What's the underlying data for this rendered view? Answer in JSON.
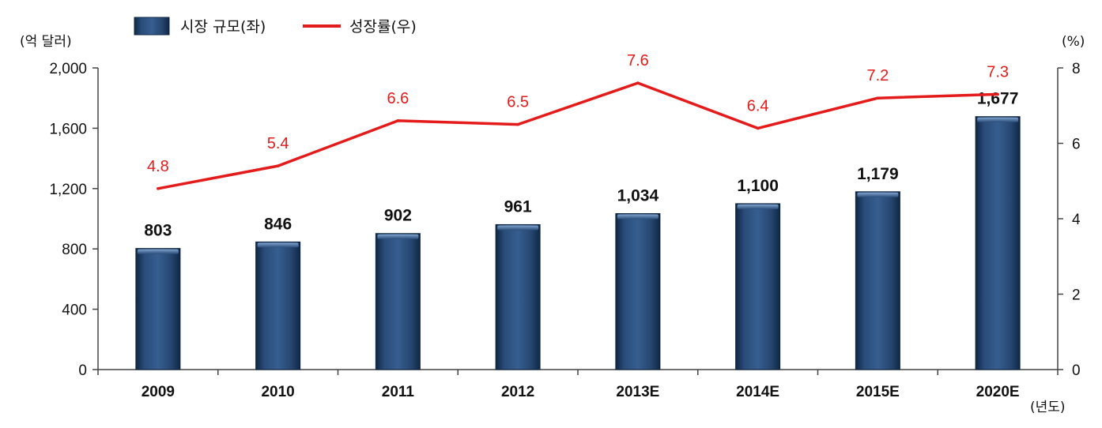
{
  "chart_data": {
    "type": "bar",
    "categories": [
      "2009",
      "2010",
      "2011",
      "2012",
      "2013E",
      "2014E",
      "2015E",
      "2020E"
    ],
    "series": [
      {
        "name": "시장 규모(좌)",
        "type": "bar",
        "axis": "left",
        "values": [
          803,
          846,
          902,
          961,
          1034,
          1100,
          1179,
          1677
        ],
        "labels": [
          "803",
          "846",
          "902",
          "961",
          "1,034",
          "1,100",
          "1,179",
          "1,677"
        ],
        "color": "#1f3b63"
      },
      {
        "name": "성장률(우)",
        "type": "line",
        "axis": "right",
        "values": [
          4.8,
          5.4,
          6.6,
          6.5,
          7.6,
          6.4,
          7.2,
          7.3
        ],
        "labels": [
          "4.8",
          "5.4",
          "6.6",
          "6.5",
          "7.6",
          "6.4",
          "7.2",
          "7.3"
        ],
        "color": "#e31b1b"
      }
    ],
    "y_left": {
      "unit_label": "(억 달러)",
      "range": [
        0,
        2000
      ],
      "ticks": [
        0,
        400,
        800,
        1200,
        1600,
        2000
      ],
      "tick_labels": [
        "0",
        "400",
        "800",
        "1,200",
        "1,600",
        "2,000"
      ]
    },
    "y_right": {
      "unit_label": "(%)",
      "range": [
        0,
        8
      ],
      "ticks": [
        0,
        2,
        4,
        6,
        8
      ],
      "tick_labels": [
        "0",
        "2",
        "4",
        "6",
        "8"
      ]
    },
    "x_unit_label": "(년도)",
    "legend_position": "top-left",
    "grid": false
  }
}
